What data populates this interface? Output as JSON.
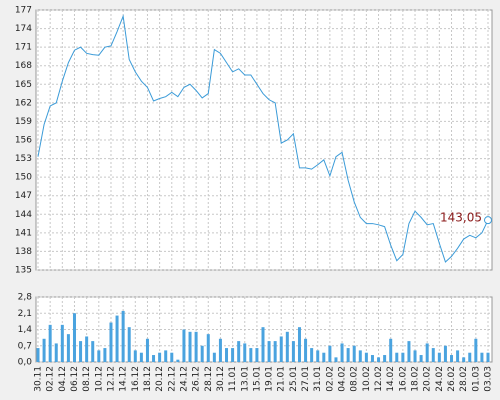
{
  "chart_data": [
    {
      "type": "line",
      "color": "#3b9bd8",
      "marker_color": "#8b1a1a",
      "values": [
        153.3,
        158.5,
        161.5,
        162,
        165.5,
        168.5,
        170.5,
        171,
        170,
        169.8,
        169.7,
        171,
        171.2,
        173.5,
        176,
        169,
        167,
        165.5,
        164.5,
        162.3,
        162.7,
        163,
        163.7,
        163,
        164.5,
        165,
        164,
        162.8,
        163.5,
        170.6,
        170,
        168.5,
        167,
        167.5,
        166.5,
        166.5,
        165,
        163.5,
        162.5,
        162,
        155.5,
        156,
        157,
        151.5,
        151.5,
        151.3,
        152,
        152.8,
        150.2,
        153.3,
        154,
        149.5,
        146,
        143.5,
        142.5,
        142.5,
        142.3,
        142,
        139,
        136.5,
        137.5,
        142.5,
        144.5,
        143.5,
        142.3,
        142.5,
        139.3,
        136.3,
        137.2,
        138.5,
        140,
        140.6,
        140.2,
        141,
        143.05
      ],
      "value_labels": [
        null,
        null,
        null,
        null,
        null,
        null,
        null,
        null,
        null,
        null,
        null,
        null,
        null,
        null,
        null,
        null,
        null,
        null,
        null,
        null,
        null,
        null,
        null,
        null,
        null,
        null,
        null,
        null,
        null,
        null,
        null,
        null,
        null,
        null,
        null,
        null,
        null,
        null,
        null,
        null,
        null,
        null,
        null,
        null,
        null,
        null,
        null,
        null,
        null,
        null,
        null,
        null,
        null,
        null,
        null,
        null,
        null,
        null,
        null,
        null,
        null,
        null,
        null,
        null,
        null,
        null,
        null,
        null,
        null,
        null,
        null,
        null,
        null,
        null,
        "143,05"
      ],
      "ylim": [
        135,
        177
      ],
      "yticks": [
        135,
        138,
        141,
        144,
        147,
        150,
        153,
        156,
        159,
        162,
        165,
        168,
        171,
        174,
        177
      ],
      "grid": true
    },
    {
      "type": "bar",
      "color": "#4aa3df",
      "categories": [
        "30.11",
        null,
        "02.12",
        null,
        "04.12",
        null,
        "06.12",
        null,
        "08.12",
        null,
        "10.12",
        null,
        "12.12",
        null,
        "14.12",
        null,
        "16.12",
        null,
        "18.12",
        null,
        "20.12",
        null,
        "22.12",
        null,
        "24.12",
        null,
        "26.12",
        null,
        "28.12",
        null,
        "30.12",
        null,
        "11.01",
        null,
        "13.01",
        null,
        "15.01",
        null,
        "19.01",
        null,
        "21.01",
        null,
        "25.01",
        null,
        "27.01",
        null,
        "31.01",
        null,
        "02.02",
        null,
        "04.02",
        null,
        "08.02",
        null,
        "10.02",
        null,
        "12.02",
        null,
        "14.02",
        null,
        "16.02",
        null,
        "18.02",
        null,
        "20.02",
        null,
        "24.02",
        null,
        "26.02",
        null,
        "28.02",
        null,
        "01.03",
        null,
        "03.03"
      ],
      "values": [
        0.6,
        1.0,
        1.6,
        0.8,
        1.6,
        1.2,
        2.1,
        0.9,
        1.1,
        0.9,
        0.5,
        0.6,
        1.7,
        2.0,
        2.2,
        1.5,
        0.5,
        0.4,
        1.0,
        0.3,
        0.4,
        0.5,
        0.4,
        0.1,
        1.4,
        1.3,
        1.3,
        0.7,
        1.2,
        0.4,
        1.0,
        0.6,
        0.6,
        0.9,
        0.8,
        0.6,
        0.6,
        1.5,
        0.9,
        0.9,
        1.1,
        1.3,
        0.9,
        1.5,
        1.0,
        0.6,
        0.5,
        0.4,
        0.7,
        0.2,
        0.8,
        0.6,
        0.7,
        0.5,
        0.4,
        0.3,
        0.2,
        0.3,
        1.0,
        0.4,
        0.4,
        0.9,
        0.5,
        0.3,
        0.8,
        0.6,
        0.4,
        0.7,
        0.3,
        0.5,
        0.2,
        0.4,
        1.0,
        0.4,
        0.4
      ],
      "ylim": [
        0,
        2.8
      ],
      "yticks": [
        {
          "value": 0,
          "label": "0,0"
        },
        {
          "value": 0.7,
          "label": "0,7"
        },
        {
          "value": 1.4,
          "label": "1,4"
        },
        {
          "value": 2.1,
          "label": "2,1"
        },
        {
          "value": 2.8,
          "label": "2,8"
        }
      ],
      "grid": true
    }
  ]
}
